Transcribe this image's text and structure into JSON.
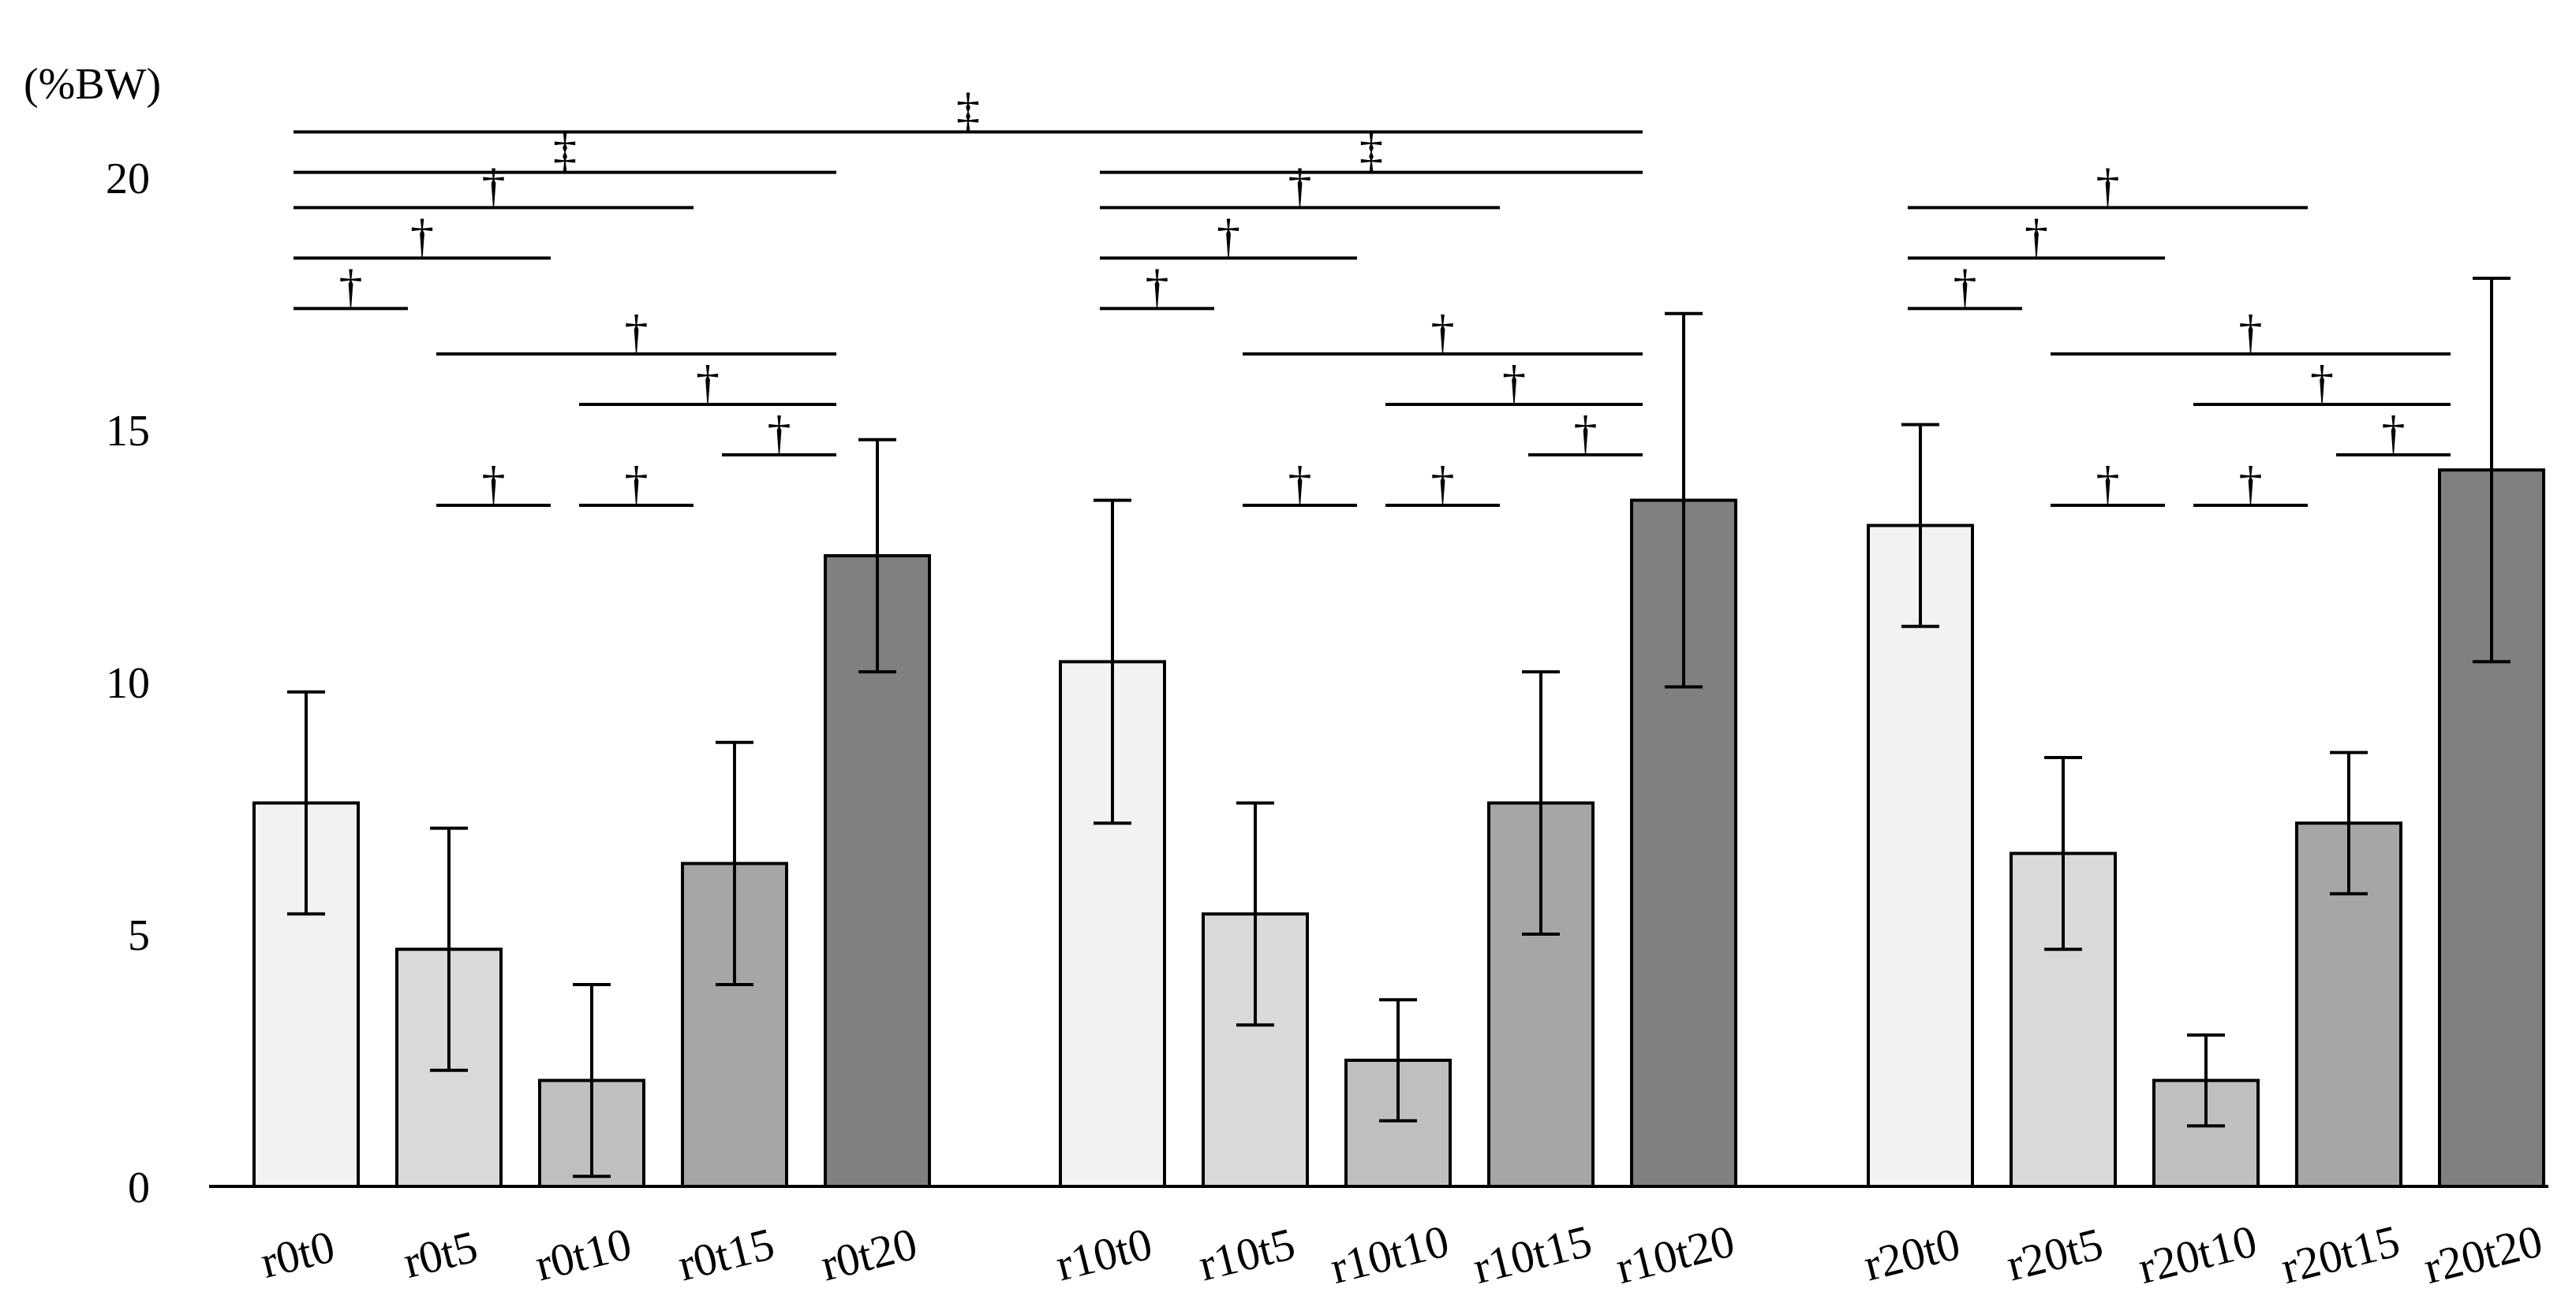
{
  "chart_data": {
    "type": "bar",
    "title": "",
    "xlabel": "",
    "ylabel": "(%BW)",
    "ylim": [
      0,
      20
    ],
    "yticks": [
      "0",
      "5",
      "10",
      "15",
      "20"
    ],
    "grid": false,
    "legend": "none",
    "groups": [
      "r0",
      "r10",
      "r20"
    ],
    "categories": [
      "r0t0",
      "r0t5",
      "r0t10",
      "r0t15",
      "r0t20",
      "r10t0",
      "r10t5",
      "r10t10",
      "r10t15",
      "r10t20",
      "r20t0",
      "r20t5",
      "r20t10",
      "r20t15",
      "r20t20"
    ],
    "values": [
      7.6,
      4.7,
      2.1,
      6.4,
      12.5,
      10.4,
      5.4,
      2.5,
      7.6,
      13.6,
      13.1,
      6.6,
      2.1,
      7.2,
      14.2
    ],
    "errors": [
      2.2,
      2.4,
      1.9,
      2.4,
      2.3,
      3.2,
      2.2,
      1.2,
      2.6,
      3.7,
      2.0,
      1.9,
      0.9,
      1.4,
      3.8
    ],
    "bar_colors": [
      "#f2f2f2",
      "#d9d9d9",
      "#bfbfbf",
      "#a6a6a6",
      "#808080",
      "#f2f2f2",
      "#d9d9d9",
      "#bfbfbf",
      "#a6a6a6",
      "#808080",
      "#f2f2f2",
      "#d9d9d9",
      "#bfbfbf",
      "#a6a6a6",
      "#808080"
    ],
    "significance": [
      {
        "from": 0,
        "to": 9,
        "symbol": "‡",
        "level": 20.9
      },
      {
        "from": 0,
        "to": 4,
        "symbol": "‡",
        "level": 20.1
      },
      {
        "from": 5,
        "to": 9,
        "symbol": "‡",
        "level": 20.1
      },
      {
        "from": 0,
        "to": 3,
        "symbol": "†",
        "level": 19.4
      },
      {
        "from": 0,
        "to": 2,
        "symbol": "†",
        "level": 18.4
      },
      {
        "from": 0,
        "to": 1,
        "symbol": "†",
        "level": 17.4
      },
      {
        "from": 1,
        "to": 4,
        "symbol": "†",
        "level": 16.5
      },
      {
        "from": 2,
        "to": 4,
        "symbol": "†",
        "level": 15.5
      },
      {
        "from": 3,
        "to": 4,
        "symbol": "†",
        "level": 14.5
      },
      {
        "from": 1,
        "to": 2,
        "symbol": "†",
        "level": 13.5
      },
      {
        "from": 2,
        "to": 3,
        "symbol": "†",
        "level": 13.5
      },
      {
        "from": 5,
        "to": 8,
        "symbol": "†",
        "level": 19.4
      },
      {
        "from": 5,
        "to": 7,
        "symbol": "†",
        "level": 18.4
      },
      {
        "from": 5,
        "to": 6,
        "symbol": "†",
        "level": 17.4
      },
      {
        "from": 6,
        "to": 9,
        "symbol": "†",
        "level": 16.5
      },
      {
        "from": 7,
        "to": 9,
        "symbol": "†",
        "level": 15.5
      },
      {
        "from": 8,
        "to": 9,
        "symbol": "†",
        "level": 14.5
      },
      {
        "from": 6,
        "to": 7,
        "symbol": "†",
        "level": 13.5
      },
      {
        "from": 7,
        "to": 8,
        "symbol": "†",
        "level": 13.5
      },
      {
        "from": 10,
        "to": 13,
        "symbol": "†",
        "level": 19.4
      },
      {
        "from": 10,
        "to": 12,
        "symbol": "†",
        "level": 18.4
      },
      {
        "from": 10,
        "to": 11,
        "symbol": "†",
        "level": 17.4
      },
      {
        "from": 11,
        "to": 14,
        "symbol": "†",
        "level": 16.5
      },
      {
        "from": 12,
        "to": 14,
        "symbol": "†",
        "level": 15.5
      },
      {
        "from": 13,
        "to": 14,
        "symbol": "†",
        "level": 14.5
      },
      {
        "from": 11,
        "to": 12,
        "symbol": "†",
        "level": 13.5
      },
      {
        "from": 12,
        "to": 13,
        "symbol": "†",
        "level": 13.5
      }
    ]
  }
}
